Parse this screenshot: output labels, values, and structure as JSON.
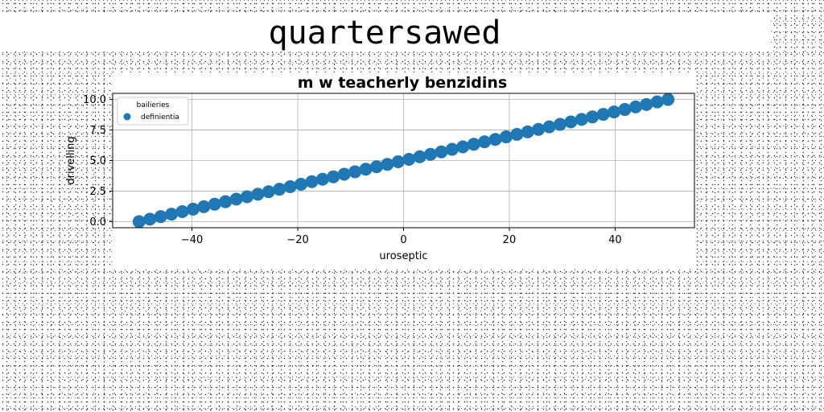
{
  "figure": {
    "suptitle": "quartersawed"
  },
  "chart_data": {
    "type": "scatter",
    "title": "m w teacherly benzidins",
    "xlabel": "uroseptic",
    "ylabel": "drivelling",
    "xlim": [
      -55,
      55
    ],
    "ylim": [
      -0.5,
      10.5
    ],
    "xticks": [
      -40,
      -20,
      0,
      20,
      40
    ],
    "yticks": [
      0.0,
      2.5,
      5.0,
      7.5,
      10.0
    ],
    "grid": true,
    "legend": {
      "title": "bailieries",
      "position": "top-left"
    },
    "series": [
      {
        "name": "definientia",
        "color": "#1f77b4",
        "marker": "circle",
        "x": [
          -50.0,
          -47.96,
          -45.92,
          -43.88,
          -41.84,
          -39.8,
          -37.76,
          -35.71,
          -33.67,
          -31.63,
          -29.59,
          -27.55,
          -25.51,
          -23.47,
          -21.43,
          -19.39,
          -17.35,
          -15.31,
          -13.27,
          -11.22,
          -9.18,
          -7.14,
          -5.1,
          -3.06,
          -1.02,
          1.02,
          3.06,
          5.1,
          7.14,
          9.18,
          11.22,
          13.27,
          15.31,
          17.35,
          19.39,
          21.43,
          23.47,
          25.51,
          27.55,
          29.59,
          31.63,
          33.67,
          35.71,
          37.76,
          39.8,
          41.84,
          43.88,
          45.92,
          47.96,
          50.0
        ],
        "y": [
          0.0,
          0.2,
          0.41,
          0.61,
          0.82,
          1.02,
          1.22,
          1.43,
          1.63,
          1.84,
          2.04,
          2.24,
          2.45,
          2.65,
          2.86,
          3.06,
          3.27,
          3.47,
          3.67,
          3.88,
          4.08,
          4.29,
          4.49,
          4.69,
          4.9,
          5.1,
          5.31,
          5.51,
          5.71,
          5.92,
          6.12,
          6.33,
          6.53,
          6.73,
          6.94,
          7.14,
          7.35,
          7.55,
          7.76,
          7.96,
          8.16,
          8.37,
          8.57,
          8.78,
          8.98,
          9.18,
          9.39,
          9.59,
          9.8,
          10.0
        ]
      }
    ]
  }
}
